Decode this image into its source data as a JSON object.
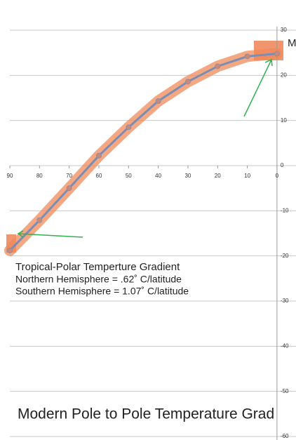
{
  "chart_data": {
    "type": "line",
    "x": [
      90,
      80,
      70,
      60,
      50,
      40,
      30,
      20,
      10,
      0
    ],
    "values": [
      -18.8,
      -12.1,
      -5,
      2.2,
      8.5,
      14.3,
      18.6,
      22,
      24.2,
      24.8
    ],
    "color": "#7a8db5",
    "highlight_color": "#f0895a",
    "xlim": [
      90,
      -6.4
    ],
    "xticks": [
      90,
      80,
      70,
      60,
      50,
      40,
      30,
      20,
      10,
      0
    ],
    "ylim": [
      -60,
      30
    ],
    "yticks": [
      30,
      20,
      10,
      0,
      -10,
      -20,
      -30,
      -40,
      -50,
      -60
    ],
    "grid": true,
    "series_label": "M",
    "annotation_title": "Tropical-Polar Temperture Gradient",
    "annotation_lines": [
      "Northern Hemisphere = .62˚ C/latitude",
      "Southern Hemisphere = 1.07˚ C/latitude"
    ],
    "title": "Modern Pole to Pole Temperature Grad"
  }
}
